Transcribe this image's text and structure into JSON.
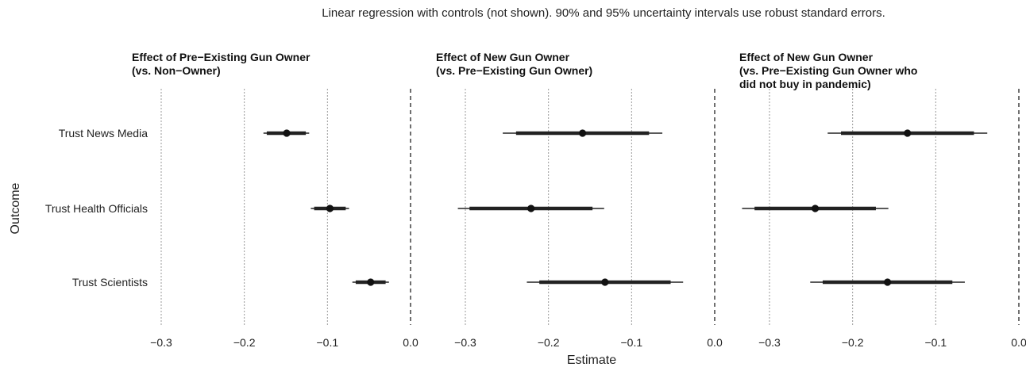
{
  "chart_data": {
    "type": "forest",
    "caption": "Linear regression with controls (not shown). 90% and 95% uncertainty intervals use robust standard errors.",
    "xlabel": "Estimate",
    "ylabel": "Outcome",
    "categories": [
      "Trust News Media",
      "Trust Health Officials",
      "Trust Scientists"
    ],
    "xlim": [
      -0.3,
      0.0
    ],
    "xticks": [
      -0.3,
      -0.2,
      -0.1,
      0.0
    ],
    "xtick_labels": [
      "−0.3",
      "−0.2",
      "−0.1",
      "0.0"
    ],
    "reference_line": 0.0,
    "grid": true,
    "panels": [
      {
        "title_lines": [
          "Effect of Pre−Existing Gun Owner",
          "(vs. Non−Owner)"
        ],
        "points": [
          {
            "category": "Trust News Media",
            "estimate": -0.149,
            "ci90": [
              -0.173,
              -0.126
            ],
            "ci95": [
              -0.177,
              -0.122
            ]
          },
          {
            "category": "Trust Health Officials",
            "estimate": -0.097,
            "ci90": [
              -0.116,
              -0.078
            ],
            "ci95": [
              -0.12,
              -0.074
            ]
          },
          {
            "category": "Trust Scientists",
            "estimate": -0.048,
            "ci90": [
              -0.066,
              -0.03
            ],
            "ci95": [
              -0.07,
              -0.026
            ]
          }
        ]
      },
      {
        "title_lines": [
          "Effect of New Gun Owner",
          "(vs. Pre−Existing Gun Owner)"
        ],
        "points": [
          {
            "category": "Trust News Media",
            "estimate": -0.159,
            "ci90": [
              -0.239,
              -0.079
            ],
            "ci95": [
              -0.255,
              -0.063
            ]
          },
          {
            "category": "Trust Health Officials",
            "estimate": -0.221,
            "ci90": [
              -0.295,
              -0.147
            ],
            "ci95": [
              -0.309,
              -0.133
            ]
          },
          {
            "category": "Trust Scientists",
            "estimate": -0.132,
            "ci90": [
              -0.211,
              -0.053
            ],
            "ci95": [
              -0.226,
              -0.038
            ]
          }
        ]
      },
      {
        "title_lines": [
          "Effect of New Gun Owner",
          "(vs. Pre−Existing Gun Owner who",
          "did not buy in pandemic)"
        ],
        "points": [
          {
            "category": "Trust News Media",
            "estimate": -0.134,
            "ci90": [
              -0.214,
              -0.054
            ],
            "ci95": [
              -0.23,
              -0.038
            ]
          },
          {
            "category": "Trust Health Officials",
            "estimate": -0.245,
            "ci90": [
              -0.318,
              -0.172
            ],
            "ci95": [
              -0.333,
              -0.157
            ]
          },
          {
            "category": "Trust Scientists",
            "estimate": -0.158,
            "ci90": [
              -0.236,
              -0.08
            ],
            "ci95": [
              -0.251,
              -0.065
            ]
          }
        ]
      }
    ]
  }
}
